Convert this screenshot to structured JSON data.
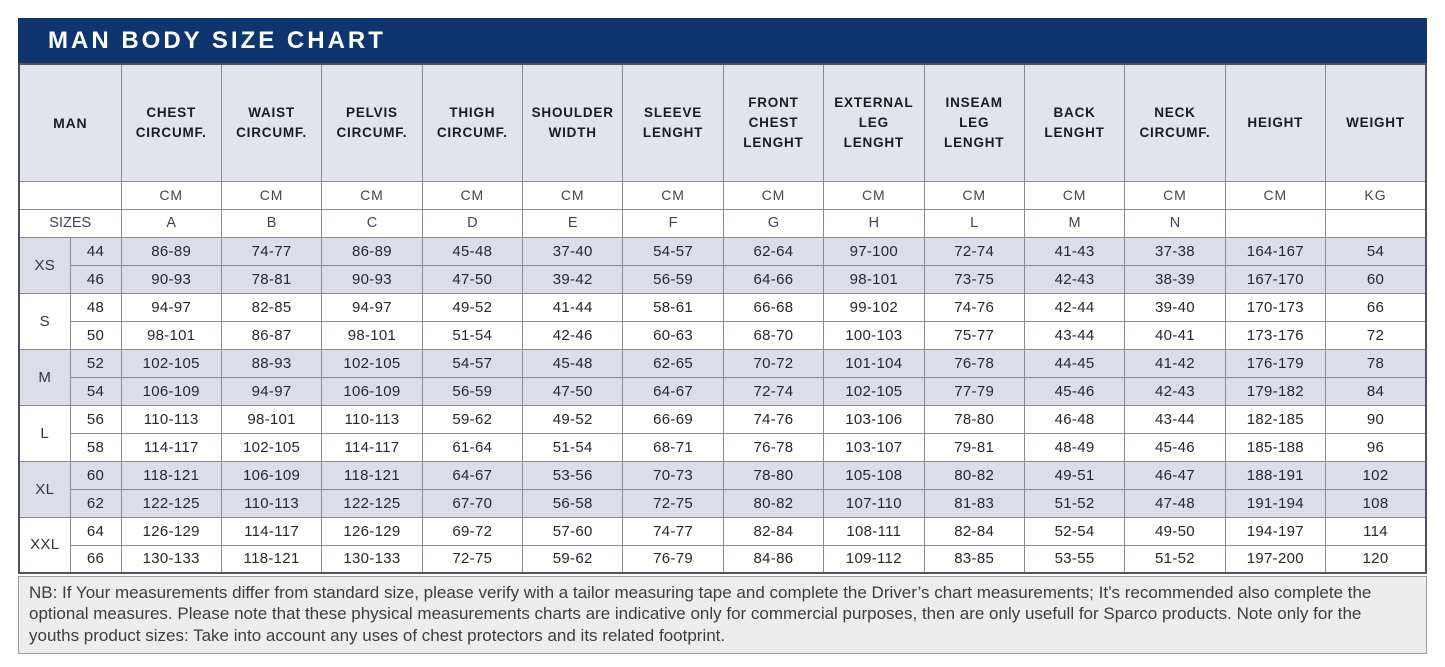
{
  "chart_data": {
    "type": "table",
    "title": "MAN BODY SIZE CHART",
    "row_axis_label": "MAN",
    "sizes_label": "SIZES",
    "colors": {
      "header_bar": "#0e356f",
      "shaded_band": "#dcdde8",
      "column_header_bg": "#e2e3eb"
    },
    "columns": [
      {
        "label": "CHEST CIRCUMF.",
        "unit": "CM",
        "letter": "A"
      },
      {
        "label": "WAIST CIRCUMF.",
        "unit": "CM",
        "letter": "B"
      },
      {
        "label": "PELVIS CIRCUMF.",
        "unit": "CM",
        "letter": "C"
      },
      {
        "label": "THIGH CIRCUMF.",
        "unit": "CM",
        "letter": "D"
      },
      {
        "label": "SHOULDER WIDTH",
        "unit": "CM",
        "letter": "E"
      },
      {
        "label": "SLEEVE LENGHT",
        "unit": "CM",
        "letter": "F"
      },
      {
        "label": "FRONT CHEST LENGHT",
        "unit": "CM",
        "letter": "G"
      },
      {
        "label": "EXTERNAL LEG LENGHT",
        "unit": "CM",
        "letter": "H"
      },
      {
        "label": "INSEAM LEG LENGHT",
        "unit": "CM",
        "letter": "L"
      },
      {
        "label": "BACK LENGHT",
        "unit": "CM",
        "letter": "M"
      },
      {
        "label": "NECK CIRCUMF.",
        "unit": "CM",
        "letter": "N"
      },
      {
        "label": "HEIGHT",
        "unit": "CM",
        "letter": ""
      },
      {
        "label": "WEIGHT",
        "unit": "KG",
        "letter": ""
      }
    ],
    "groups": [
      {
        "name": "XS",
        "shaded": true,
        "rows": [
          {
            "size": "44",
            "values": [
              "86-89",
              "74-77",
              "86-89",
              "45-48",
              "37-40",
              "54-57",
              "62-64",
              "97-100",
              "72-74",
              "41-43",
              "37-38",
              "164-167",
              "54"
            ]
          },
          {
            "size": "46",
            "values": [
              "90-93",
              "78-81",
              "90-93",
              "47-50",
              "39-42",
              "56-59",
              "64-66",
              "98-101",
              "73-75",
              "42-43",
              "38-39",
              "167-170",
              "60"
            ]
          }
        ]
      },
      {
        "name": "S",
        "shaded": false,
        "rows": [
          {
            "size": "48",
            "values": [
              "94-97",
              "82-85",
              "94-97",
              "49-52",
              "41-44",
              "58-61",
              "66-68",
              "99-102",
              "74-76",
              "42-44",
              "39-40",
              "170-173",
              "66"
            ]
          },
          {
            "size": "50",
            "values": [
              "98-101",
              "86-87",
              "98-101",
              "51-54",
              "42-46",
              "60-63",
              "68-70",
              "100-103",
              "75-77",
              "43-44",
              "40-41",
              "173-176",
              "72"
            ]
          }
        ]
      },
      {
        "name": "M",
        "shaded": true,
        "rows": [
          {
            "size": "52",
            "values": [
              "102-105",
              "88-93",
              "102-105",
              "54-57",
              "45-48",
              "62-65",
              "70-72",
              "101-104",
              "76-78",
              "44-45",
              "41-42",
              "176-179",
              "78"
            ]
          },
          {
            "size": "54",
            "values": [
              "106-109",
              "94-97",
              "106-109",
              "56-59",
              "47-50",
              "64-67",
              "72-74",
              "102-105",
              "77-79",
              "45-46",
              "42-43",
              "179-182",
              "84"
            ]
          }
        ]
      },
      {
        "name": "L",
        "shaded": false,
        "rows": [
          {
            "size": "56",
            "values": [
              "110-113",
              "98-101",
              "110-113",
              "59-62",
              "49-52",
              "66-69",
              "74-76",
              "103-106",
              "78-80",
              "46-48",
              "43-44",
              "182-185",
              "90"
            ]
          },
          {
            "size": "58",
            "values": [
              "114-117",
              "102-105",
              "114-117",
              "61-64",
              "51-54",
              "68-71",
              "76-78",
              "103-107",
              "79-81",
              "48-49",
              "45-46",
              "185-188",
              "96"
            ]
          }
        ]
      },
      {
        "name": "XL",
        "shaded": true,
        "rows": [
          {
            "size": "60",
            "values": [
              "118-121",
              "106-109",
              "118-121",
              "64-67",
              "53-56",
              "70-73",
              "78-80",
              "105-108",
              "80-82",
              "49-51",
              "46-47",
              "188-191",
              "102"
            ]
          },
          {
            "size": "62",
            "values": [
              "122-125",
              "110-113",
              "122-125",
              "67-70",
              "56-58",
              "72-75",
              "80-82",
              "107-110",
              "81-83",
              "51-52",
              "47-48",
              "191-194",
              "108"
            ]
          }
        ]
      },
      {
        "name": "XXL",
        "shaded": false,
        "rows": [
          {
            "size": "64",
            "values": [
              "126-129",
              "114-117",
              "126-129",
              "69-72",
              "57-60",
              "74-77",
              "82-84",
              "108-111",
              "82-84",
              "52-54",
              "49-50",
              "194-197",
              "114"
            ]
          },
          {
            "size": "66",
            "values": [
              "130-133",
              "118-121",
              "130-133",
              "72-75",
              "59-62",
              "76-79",
              "84-86",
              "109-112",
              "83-85",
              "53-55",
              "51-52",
              "197-200",
              "120"
            ]
          }
        ]
      }
    ]
  },
  "note": "NB: If Your measurements differ from standard size, please verify with a tailor measuring tape and complete the Driver’s chart measurements; It’s recommended also complete the optional measures. Please note that these physical measurements charts are indicative only for commercial purposes, then are only usefull for Sparco products. Note only for the youths product sizes: Take into account any uses of chest protectors and its related footprint."
}
